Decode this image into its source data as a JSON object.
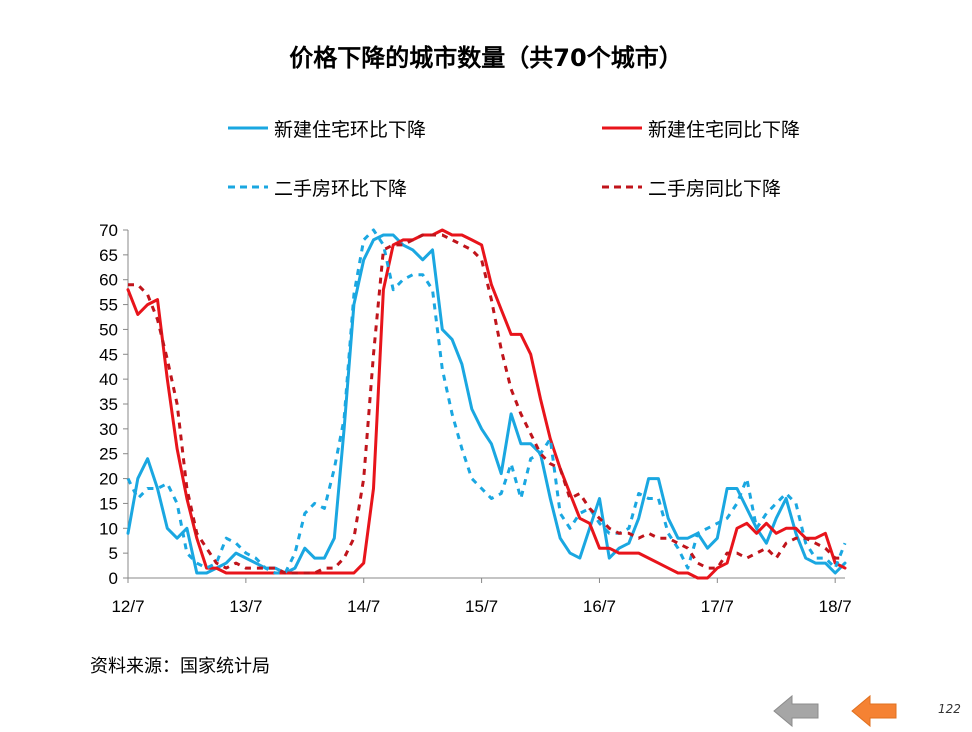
{
  "colors": {
    "cyan": "#1AA7E1",
    "red": "#E8141B",
    "darkred": "#C0141B",
    "nav_gray": "#A6A6A6",
    "nav_orange": "#F58233"
  },
  "footer": {
    "source": "资料来源：国家统计局",
    "page_number": "122",
    "prev_icon": "gray-left-arrow-icon",
    "next_icon": "orange-left-arrow-icon"
  },
  "chart_data": {
    "type": "line",
    "title": "价格下降的城市数量（共70个城市）",
    "ylim": [
      0,
      70
    ],
    "yticks": [
      "0",
      "5",
      "10",
      "15",
      "20",
      "25",
      "30",
      "35",
      "40",
      "45",
      "50",
      "55",
      "60",
      "65",
      "70"
    ],
    "xlim": [
      0,
      73
    ],
    "xticks": [
      {
        "label": "12/7",
        "x": 0
      },
      {
        "label": "13/7",
        "x": 12
      },
      {
        "label": "14/7",
        "x": 24
      },
      {
        "label": "15/7",
        "x": 36
      },
      {
        "label": "16/7",
        "x": 48
      },
      {
        "label": "17/7",
        "x": 60
      },
      {
        "label": "18/7",
        "x": 72
      }
    ],
    "grid": false,
    "legend_placement": "top",
    "series": [
      {
        "name": "新建住宅环比下降",
        "color": "#1AA7E1",
        "dash": "solid",
        "values": [
          9,
          20,
          24,
          18,
          10,
          8,
          10,
          1,
          1,
          2,
          3,
          5,
          4,
          3,
          2,
          2,
          1,
          2,
          6,
          4,
          4,
          8,
          30,
          55,
          64,
          68,
          69,
          69,
          67,
          66,
          64,
          66,
          50,
          48,
          43,
          34,
          30,
          27,
          21,
          33,
          27,
          27,
          25,
          16,
          8,
          5,
          4,
          10,
          16,
          4,
          6,
          7,
          12,
          20,
          20,
          12,
          8,
          8,
          9,
          6,
          8,
          18,
          18,
          14,
          10,
          7,
          12,
          16,
          9,
          4,
          3,
          3,
          1,
          3
        ]
      },
      {
        "name": "新建住宅同比下降",
        "color": "#E8141B",
        "dash": "solid",
        "values": [
          58,
          53,
          55,
          56,
          40,
          26,
          16,
          8,
          2,
          2,
          1,
          1,
          1,
          1,
          1,
          1,
          1,
          1,
          1,
          1,
          1,
          1,
          1,
          1,
          3,
          18,
          58,
          67,
          68,
          68,
          69,
          69,
          70,
          69,
          69,
          68,
          67,
          59,
          54,
          49,
          49,
          45,
          36,
          28,
          22,
          17,
          12,
          11,
          6,
          6,
          5,
          5,
          5,
          4,
          3,
          2,
          1,
          1,
          0,
          0,
          2,
          3,
          10,
          11,
          9,
          11,
          9,
          10,
          10,
          8,
          8,
          9,
          3,
          2
        ]
      },
      {
        "name": "二手房环比下降",
        "color": "#1AA7E1",
        "dash": "dashed",
        "values": [
          20,
          16,
          18,
          18,
          19,
          15,
          5,
          3,
          2,
          3,
          8,
          7,
          5,
          4,
          2,
          1,
          1,
          5,
          13,
          15,
          14,
          22,
          32,
          57,
          68,
          70,
          67,
          58,
          60,
          61,
          61,
          58,
          42,
          33,
          26,
          20,
          18,
          16,
          17,
          23,
          16,
          24,
          25,
          28,
          13,
          10,
          13,
          14,
          11,
          9,
          9,
          10,
          17,
          16,
          16,
          9,
          6,
          2,
          9,
          10,
          11,
          12,
          15,
          20,
          10,
          13,
          15,
          17,
          15,
          7,
          4,
          4,
          2,
          7
        ]
      },
      {
        "name": "二手房同比下降",
        "color": "#C0141B",
        "dash": "dashed",
        "values": [
          59,
          59,
          57,
          52,
          44,
          35,
          18,
          9,
          6,
          3,
          2,
          3,
          2,
          2,
          2,
          2,
          1,
          1,
          1,
          1,
          2,
          2,
          4,
          8,
          20,
          45,
          66,
          67,
          67,
          68,
          69,
          69,
          69,
          68,
          67,
          66,
          64,
          56,
          46,
          38,
          33,
          29,
          25,
          23,
          22,
          16,
          17,
          14,
          12,
          10,
          9,
          9,
          8,
          9,
          8,
          8,
          7,
          6,
          3,
          2,
          2,
          5,
          5,
          4,
          5,
          6,
          4,
          7,
          8,
          8,
          7,
          6,
          4,
          4
        ]
      }
    ]
  }
}
